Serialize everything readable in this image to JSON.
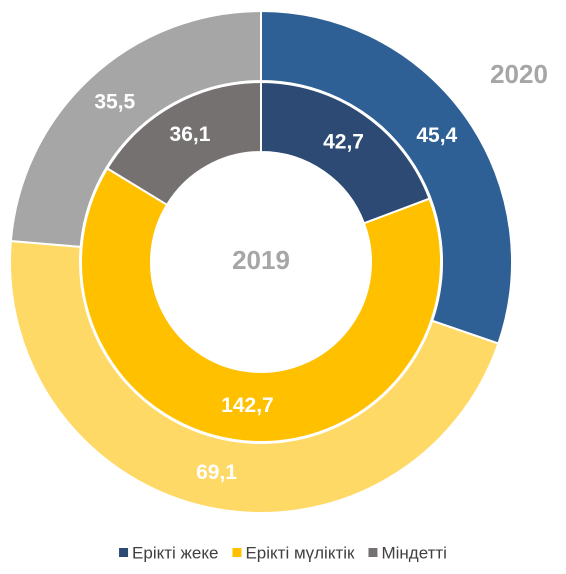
{
  "chart_data": {
    "type": "donut",
    "categories": [
      "Ерікті жеке",
      "Ерікті мүліктік",
      "Міндетті"
    ],
    "series": [
      {
        "name": "2019",
        "values": [
          42.7,
          142.7,
          36.1
        ],
        "value_labels": [
          "42,7",
          "142,7",
          "36,1"
        ],
        "colors": [
          "#2c4a73",
          "#ffc000",
          "#767171"
        ]
      },
      {
        "name": "2020",
        "values": [
          45.4,
          69.1,
          35.5
        ],
        "value_labels": [
          "45,4",
          "69,1",
          "35,5"
        ],
        "colors": [
          "#2e6095",
          "#ffd966",
          "#a6a6a6"
        ]
      }
    ],
    "legend": "bottom"
  }
}
